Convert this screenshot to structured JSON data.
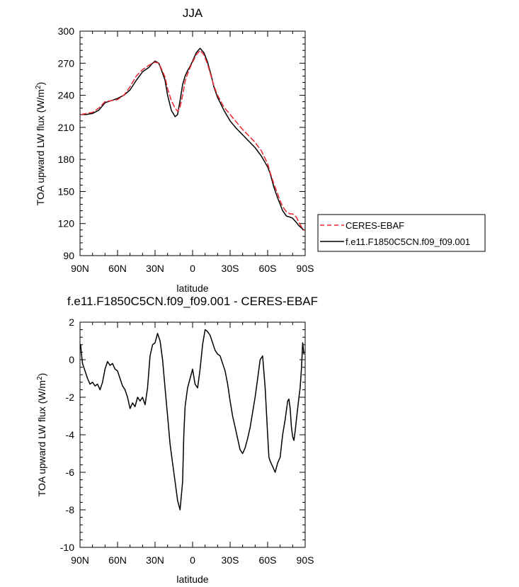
{
  "chart_data": [
    {
      "type": "line",
      "title": "JJA",
      "xlabel": "latitude",
      "ylabel": "TOA upward LW flux (W/m",
      "ylabel_sup": "2",
      "ylabel_close": ")",
      "xlim": [
        90,
        -90
      ],
      "ylim": [
        90,
        300
      ],
      "xticks": [
        90,
        60,
        30,
        0,
        -30,
        -60,
        -90
      ],
      "xticklabels": [
        "90N",
        "60N",
        "30N",
        "0",
        "30S",
        "60S",
        "90S"
      ],
      "yticks": [
        90,
        120,
        150,
        180,
        210,
        240,
        270,
        300
      ],
      "yticklabels": [
        "90",
        "120",
        "150",
        "180",
        "210",
        "240",
        "270",
        "300"
      ],
      "legend_position": "right",
      "series": [
        {
          "name": "CERES-EBAF",
          "color": "#e8262e",
          "dash": "dashed",
          "x": [
            89,
            85,
            80,
            75,
            70,
            65,
            60,
            55,
            50,
            45,
            40,
            35,
            32,
            30,
            27,
            25,
            22,
            20,
            17,
            14,
            12,
            10,
            8,
            6,
            4,
            2,
            0,
            -3,
            -6,
            -9,
            -12,
            -15,
            -17,
            -20,
            -25,
            -30,
            -35,
            -40,
            -45,
            -50,
            -55,
            -60,
            -62,
            -65,
            -68,
            -70,
            -72,
            -75,
            -78,
            -80,
            -83,
            -85,
            -87,
            -89
          ],
          "y": [
            222,
            223,
            224,
            228,
            234,
            235,
            236,
            240,
            248,
            258,
            264,
            268,
            270,
            271,
            270,
            265,
            257,
            246,
            235,
            228,
            225,
            229,
            240,
            253,
            260,
            266,
            271,
            278,
            282,
            278,
            269,
            257,
            249,
            240,
            229,
            222,
            215,
            208,
            202,
            196,
            188,
            176,
            168,
            157,
            148,
            141,
            136,
            131,
            129,
            129,
            126,
            121,
            117,
            114
          ]
        },
        {
          "name": "f.e11.F1850C5CN.f09_f09.001",
          "color": "#000000",
          "dash": "solid",
          "x": [
            89,
            85,
            80,
            75,
            70,
            65,
            60,
            55,
            50,
            45,
            40,
            35,
            32,
            30,
            27,
            25,
            22,
            20,
            17,
            14,
            12,
            10,
            8,
            6,
            4,
            2,
            0,
            -3,
            -6,
            -9,
            -12,
            -15,
            -17,
            -20,
            -25,
            -30,
            -35,
            -40,
            -45,
            -50,
            -55,
            -60,
            -62,
            -65,
            -68,
            -70,
            -72,
            -75,
            -78,
            -80,
            -83,
            -85,
            -87,
            -89
          ],
          "y": [
            222,
            222,
            223,
            226,
            233,
            235,
            237,
            240,
            245,
            254,
            262,
            266,
            270,
            272,
            270,
            264,
            254,
            240,
            226,
            220,
            222,
            235,
            250,
            258,
            263,
            267,
            272,
            280,
            284,
            280,
            271,
            258,
            248,
            238,
            226,
            216,
            209,
            203,
            197,
            191,
            183,
            173,
            167,
            154,
            144,
            138,
            132,
            127,
            126,
            125,
            121,
            118,
            116,
            114
          ]
        }
      ]
    },
    {
      "type": "line",
      "title": "f.e11.F1850C5CN.f09_f09.001 - CERES-EBAF",
      "xlabel": "latitude",
      "ylabel": "TOA upward LW flux (W/m",
      "ylabel_sup": "2",
      "ylabel_close": ")",
      "xlim": [
        90,
        -90
      ],
      "ylim": [
        -10,
        2
      ],
      "xticks": [
        90,
        60,
        30,
        0,
        -30,
        -60,
        -90
      ],
      "xticklabels": [
        "90N",
        "60N",
        "30N",
        "0",
        "30S",
        "60S",
        "90S"
      ],
      "yticks": [
        -10,
        -8,
        -6,
        -4,
        -2,
        0,
        2
      ],
      "yticklabels": [
        "-10",
        "-8",
        "-6",
        "-4",
        "-2",
        "0",
        "2"
      ],
      "series": [
        {
          "color": "#000000",
          "dash": "solid",
          "x": [
            89.5,
            89,
            88,
            86,
            84,
            82,
            80,
            78,
            76,
            74,
            72,
            70,
            68,
            66,
            64,
            62,
            60,
            58,
            56,
            54,
            52,
            50,
            48,
            46,
            44,
            42,
            40,
            38,
            36,
            34,
            32,
            30,
            28,
            26,
            24,
            22,
            20,
            18,
            16,
            14,
            12,
            10,
            8,
            7,
            6,
            4,
            2,
            0,
            -2,
            -4,
            -6,
            -8,
            -10,
            -12,
            -14,
            -16,
            -18,
            -20,
            -22,
            -24,
            -26,
            -28,
            -30,
            -32,
            -34,
            -36,
            -38,
            -40,
            -42,
            -44,
            -46,
            -48,
            -50,
            -52,
            -54,
            -56,
            -58,
            -60,
            -61,
            -62,
            -64,
            -66,
            -68,
            -70,
            -71,
            -72,
            -74,
            -76,
            -77,
            -78,
            -79,
            -80,
            -81,
            -82,
            -83,
            -84,
            -85,
            -86,
            -87,
            -88,
            -88.5,
            -89
          ],
          "y": [
            0.8,
            0.4,
            -0.2,
            -0.6,
            -1.0,
            -1.3,
            -1.2,
            -1.4,
            -1.3,
            -1.6,
            -1.2,
            -0.5,
            -0.1,
            -0.3,
            -0.2,
            -0.5,
            -0.6,
            -1.0,
            -1.4,
            -1.6,
            -2.0,
            -2.6,
            -2.3,
            -2.5,
            -2.0,
            -2.2,
            -2.0,
            -2.4,
            -1.5,
            0.2,
            0.8,
            0.9,
            1.4,
            1.0,
            0.0,
            -1.5,
            -3.0,
            -4.5,
            -5.5,
            -6.5,
            -7.5,
            -8.0,
            -6.5,
            -4.0,
            -2.5,
            -1.5,
            -1.0,
            -0.5,
            -1.3,
            -1.5,
            -0.5,
            0.8,
            1.6,
            1.5,
            1.3,
            0.9,
            0.5,
            0.3,
            0.2,
            -0.2,
            -0.6,
            -1.3,
            -2.2,
            -3.0,
            -3.6,
            -4.2,
            -4.8,
            -5.0,
            -4.7,
            -4.2,
            -3.6,
            -2.8,
            -2.0,
            -1.0,
            0.0,
            0.2,
            -1.5,
            -4.0,
            -5.2,
            -5.4,
            -5.7,
            -6.0,
            -5.5,
            -5.2,
            -4.6,
            -4.0,
            -3.2,
            -2.2,
            -2.1,
            -2.6,
            -3.6,
            -4.1,
            -4.3,
            -3.8,
            -3.2,
            -2.6,
            -2.0,
            -1.5,
            -0.5,
            0.9,
            0.6,
            0.3
          ]
        }
      ]
    }
  ]
}
